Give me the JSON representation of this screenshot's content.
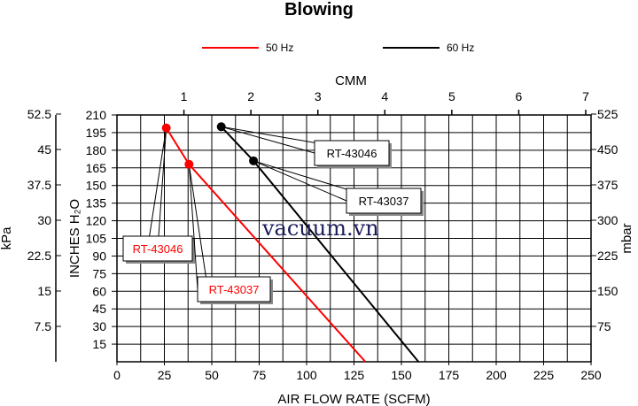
{
  "chart_data": {
    "type": "line",
    "title": "Blowing",
    "watermark": "vacuum.vn",
    "legend": [
      {
        "label": "50 Hz",
        "color": "#ff0000"
      },
      {
        "label": "60 Hz",
        "color": "#000000"
      }
    ],
    "x_bottom": {
      "label": "AIR FLOW RATE (SCFM)",
      "range": [
        0,
        250
      ],
      "ticks": [
        "0",
        "25",
        "50",
        "75",
        "100",
        "125",
        "150",
        "175",
        "200",
        "225",
        "250"
      ]
    },
    "x_top": {
      "label": "CMM",
      "ticks": [
        "1",
        "2",
        "3",
        "4",
        "5",
        "6",
        "7"
      ]
    },
    "y_left_outer": {
      "label": "kPa",
      "ticks": [
        "7.5",
        "15",
        "22.5",
        "30",
        "37.5",
        "45",
        "52.5"
      ]
    },
    "y_left_inner": {
      "label": "INCHES H₂O",
      "range": [
        0,
        210
      ],
      "ticks": [
        "15",
        "30",
        "45",
        "60",
        "75",
        "90",
        "105",
        "120",
        "135",
        "150",
        "165",
        "180",
        "195",
        "210"
      ]
    },
    "y_right": {
      "label": "mbar",
      "ticks": [
        "75",
        "150",
        "225",
        "300",
        "375",
        "450",
        "525"
      ]
    },
    "grid": true,
    "series": [
      {
        "name": "50 Hz",
        "color": "#ff0000",
        "x": [
          26,
          38,
          131
        ],
        "y": [
          199,
          168,
          0
        ]
      },
      {
        "name": "60 Hz",
        "color": "#000000",
        "x": [
          55,
          72,
          159
        ],
        "y": [
          200,
          171,
          0
        ]
      }
    ],
    "callouts": [
      {
        "text": "RT-43046",
        "color": "#ff0000",
        "series": 0,
        "point": 0
      },
      {
        "text": "RT-43037",
        "color": "#ff0000",
        "series": 0,
        "point": 1
      },
      {
        "text": "RT-43046",
        "color": "#000000",
        "series": 1,
        "point": 0
      },
      {
        "text": "RT-43037",
        "color": "#000000",
        "series": 1,
        "point": 1
      }
    ]
  }
}
